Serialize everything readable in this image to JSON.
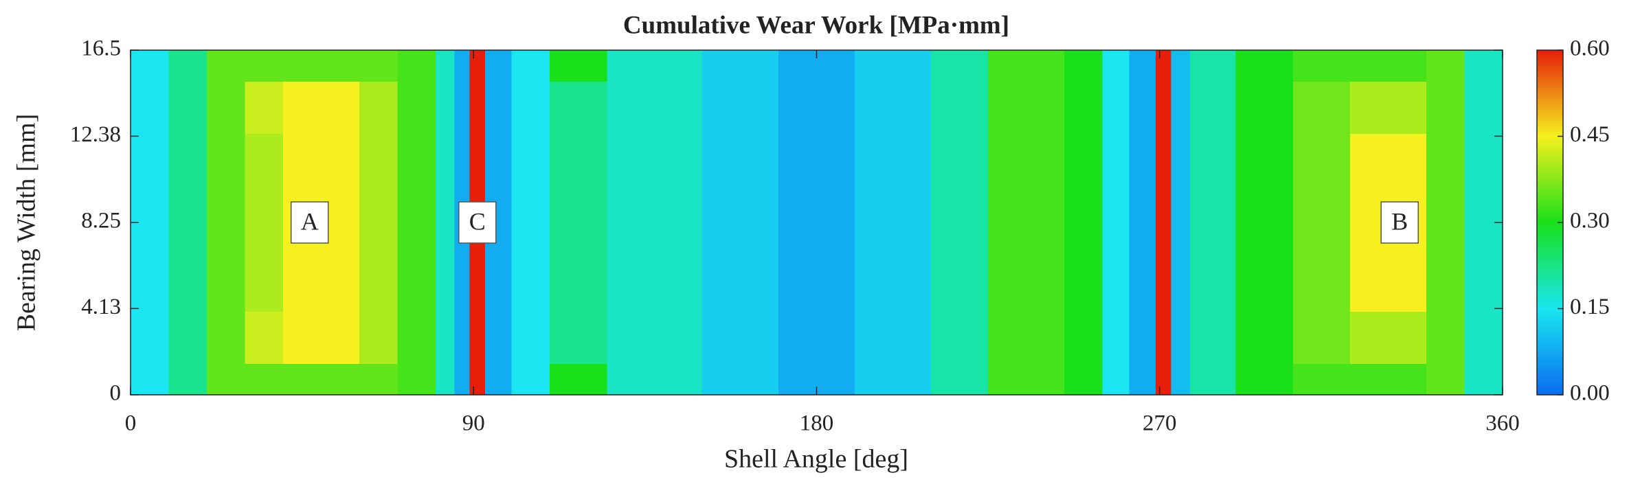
{
  "chart_data": {
    "type": "heatmap",
    "title": "Cumulative Wear Work [MPa·mm]",
    "xlabel": "Shell Angle [deg]",
    "ylabel": "Bearing Width [mm]",
    "x_edges": [
      0,
      10,
      20,
      30,
      40,
      60,
      70,
      80,
      85,
      89,
      93,
      100,
      110,
      125,
      150,
      170,
      190,
      210,
      225,
      245,
      255,
      262,
      269,
      273,
      278,
      290,
      305,
      320,
      340,
      350,
      360
    ],
    "y_edges": [
      0,
      1.5,
      4,
      8.25,
      12.5,
      15,
      16.5
    ],
    "z": [
      [
        0.15,
        0.22,
        0.35,
        0.35,
        0.35,
        0.35,
        0.33,
        0.18,
        0.08,
        0.6,
        0.08,
        0.15,
        0.3,
        0.18,
        0.12,
        0.08,
        0.12,
        0.2,
        0.33,
        0.3,
        0.15,
        0.08,
        0.6,
        0.1,
        0.2,
        0.3,
        0.33,
        0.33,
        0.35,
        0.18
      ],
      [
        0.15,
        0.22,
        0.35,
        0.42,
        0.45,
        0.4,
        0.33,
        0.18,
        0.08,
        0.6,
        0.08,
        0.15,
        0.22,
        0.18,
        0.12,
        0.08,
        0.12,
        0.2,
        0.33,
        0.3,
        0.15,
        0.08,
        0.6,
        0.1,
        0.2,
        0.3,
        0.36,
        0.4,
        0.35,
        0.18
      ],
      [
        0.15,
        0.22,
        0.35,
        0.4,
        0.45,
        0.4,
        0.33,
        0.18,
        0.08,
        0.6,
        0.08,
        0.15,
        0.22,
        0.18,
        0.12,
        0.08,
        0.12,
        0.2,
        0.33,
        0.3,
        0.15,
        0.08,
        0.6,
        0.1,
        0.2,
        0.3,
        0.36,
        0.45,
        0.35,
        0.18
      ],
      [
        0.15,
        0.22,
        0.35,
        0.4,
        0.45,
        0.4,
        0.33,
        0.18,
        0.08,
        0.6,
        0.08,
        0.15,
        0.22,
        0.18,
        0.12,
        0.08,
        0.12,
        0.2,
        0.33,
        0.3,
        0.15,
        0.08,
        0.6,
        0.1,
        0.2,
        0.3,
        0.36,
        0.45,
        0.35,
        0.18
      ],
      [
        0.15,
        0.22,
        0.35,
        0.42,
        0.45,
        0.4,
        0.33,
        0.18,
        0.08,
        0.6,
        0.08,
        0.15,
        0.22,
        0.18,
        0.12,
        0.08,
        0.12,
        0.2,
        0.33,
        0.3,
        0.15,
        0.08,
        0.6,
        0.1,
        0.2,
        0.3,
        0.36,
        0.4,
        0.35,
        0.18
      ],
      [
        0.15,
        0.22,
        0.35,
        0.35,
        0.35,
        0.35,
        0.33,
        0.18,
        0.08,
        0.6,
        0.08,
        0.15,
        0.3,
        0.18,
        0.12,
        0.08,
        0.12,
        0.2,
        0.33,
        0.3,
        0.15,
        0.08,
        0.6,
        0.1,
        0.2,
        0.3,
        0.33,
        0.33,
        0.35,
        0.18
      ]
    ],
    "xlim": [
      0,
      360
    ],
    "xticks": [
      0,
      90,
      180,
      270,
      360
    ],
    "ylim": [
      0,
      16.5
    ],
    "yticks": [
      0,
      4.13,
      8.25,
      12.38,
      16.5
    ],
    "clim": [
      0,
      0.6
    ],
    "cticks": [
      {
        "value": 0,
        "label": "0.00"
      },
      {
        "value": 0.15,
        "label": "0.15"
      },
      {
        "value": 0.3,
        "label": "0.30"
      },
      {
        "value": 0.45,
        "label": "0.45"
      },
      {
        "value": 0.6,
        "label": "0.60"
      }
    ],
    "colorscale": [
      [
        0,
        "#0a6cf0"
      ],
      [
        0.25,
        "#19e6f0"
      ],
      [
        0.5,
        "#19e019"
      ],
      [
        0.75,
        "#f5f01e"
      ],
      [
        1,
        "#e61e0a"
      ]
    ],
    "annotations": [
      {
        "text": "A",
        "x": 47,
        "y": 8.25
      },
      {
        "text": "C",
        "x": 91,
        "y": 8.25
      },
      {
        "text": "B",
        "x": 333,
        "y": 8.25
      }
    ]
  }
}
